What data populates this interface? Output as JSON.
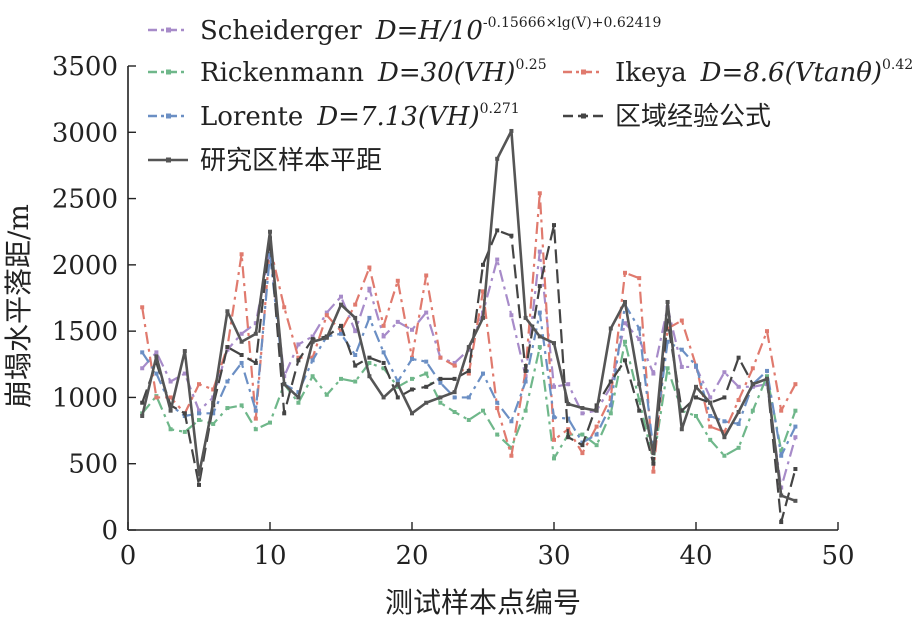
{
  "chart_data": {
    "type": "line",
    "xlabel": "测试样本点编号",
    "ylabel": "崩塌水平落距/m",
    "xlim": [
      0,
      50
    ],
    "ylim": [
      0,
      3500
    ],
    "xticks": [
      "0",
      "10",
      "20",
      "30",
      "40",
      "50"
    ],
    "yticks": [
      "0",
      "500",
      "1000",
      "1500",
      "2000",
      "2500",
      "3000",
      "3500"
    ],
    "grid": false,
    "legend_position": "top",
    "x": [
      1,
      2,
      3,
      4,
      5,
      6,
      7,
      8,
      9,
      10,
      11,
      12,
      13,
      14,
      15,
      16,
      17,
      18,
      19,
      20,
      21,
      22,
      23,
      24,
      25,
      26,
      27,
      28,
      29,
      30,
      31,
      32,
      33,
      34,
      35,
      36,
      37,
      38,
      39,
      40,
      41,
      42,
      43,
      44,
      45,
      46,
      47
    ],
    "series": [
      {
        "name": "Scheiderger",
        "formula_main": "D=H/10",
        "formula_exp": "-0.15666×lg(V)+0.62419",
        "color": "#a78bc9",
        "style": "dashdot",
        "values": [
          1220,
          1340,
          1120,
          1180,
          900,
          1000,
          1360,
          1480,
          1560,
          2120,
          1160,
          1400,
          1460,
          1640,
          1760,
          1500,
          1820,
          1460,
          1570,
          1510,
          1640,
          1300,
          1260,
          1360,
          1640,
          2040,
          1620,
          1160,
          2100,
          1080,
          1100,
          880,
          900,
          1080,
          1560,
          1440,
          1180,
          1680,
          1230,
          1230,
          1000,
          1190,
          1080,
          1080,
          1100,
          320,
          700
        ]
      },
      {
        "name": "Rickenmann",
        "formula_main": "D=30(VH)",
        "formula_exp": "0.25",
        "color": "#6fb78a",
        "style": "dashdot",
        "values": [
          880,
          1010,
          760,
          740,
          830,
          800,
          920,
          940,
          760,
          810,
          1100,
          960,
          1160,
          1020,
          1140,
          1120,
          1260,
          1220,
          1080,
          1140,
          1180,
          960,
          890,
          830,
          900,
          720,
          620,
          900,
          1380,
          540,
          720,
          720,
          640,
          880,
          1420,
          980,
          520,
          1220,
          900,
          860,
          680,
          560,
          620,
          900,
          1160,
          600,
          900
        ]
      },
      {
        "name": "Ikeya",
        "formula_main": "D=8.6(Vtanθ)",
        "formula_exp": "0.42",
        "color": "#e07a6e",
        "style": "dashdot",
        "values": [
          1680,
          1000,
          1000,
          880,
          1100,
          1060,
          1380,
          2080,
          840,
          2140,
          1680,
          1300,
          1300,
          1620,
          1500,
          1700,
          1980,
          1540,
          1880,
          1300,
          1920,
          1300,
          1240,
          1180,
          1800,
          920,
          560,
          1200,
          2540,
          680,
          760,
          580,
          780,
          1000,
          1940,
          1900,
          440,
          1520,
          1580,
          1240,
          780,
          740,
          980,
          1220,
          1500,
          900,
          1100
        ]
      },
      {
        "name": "Lorente",
        "formula_main": "D=7.13(VH)",
        "formula_exp": "0.271",
        "color": "#6b8fc4",
        "style": "dashdot",
        "values": [
          1340,
          1180,
          940,
          860,
          880,
          880,
          1120,
          1260,
          900,
          2080,
          1100,
          1040,
          1280,
          1460,
          1480,
          1320,
          1600,
          1340,
          1120,
          1290,
          1270,
          1110,
          1000,
          1000,
          1180,
          960,
          820,
          1120,
          1640,
          850,
          840,
          660,
          720,
          940,
          1700,
          1520,
          600,
          1420,
          1360,
          1240,
          860,
          820,
          800,
          1100,
          1200,
          560,
          780
        ]
      },
      {
        "name": "区域经验公式",
        "color": "#444444",
        "style": "dashed",
        "values": [
          960,
          1260,
          940,
          880,
          340,
          940,
          1380,
          1320,
          1260,
          2200,
          880,
          1280,
          1440,
          1460,
          1540,
          1240,
          1300,
          1260,
          1000,
          1060,
          1080,
          1140,
          1140,
          1200,
          2000,
          2260,
          2220,
          1200,
          1840,
          2300,
          700,
          640,
          940,
          1120,
          1280,
          900,
          500,
          1580,
          900,
          1000,
          960,
          1000,
          1300,
          1100,
          1140,
          60,
          460
        ]
      },
      {
        "name": "研究区样本平距",
        "color": "#555555",
        "style": "solid",
        "values": [
          860,
          1310,
          900,
          1350,
          420,
          960,
          1650,
          1420,
          1480,
          2250,
          1100,
          1000,
          1420,
          1450,
          1700,
          1600,
          1160,
          1000,
          1100,
          880,
          960,
          1000,
          1040,
          1380,
          1600,
          2800,
          3010,
          1600,
          1460,
          1410,
          950,
          920,
          900,
          1520,
          1720,
          1100,
          580,
          1720,
          760,
          1080,
          960,
          700,
          890,
          1100,
          1140,
          260,
          220
        ]
      }
    ]
  }
}
